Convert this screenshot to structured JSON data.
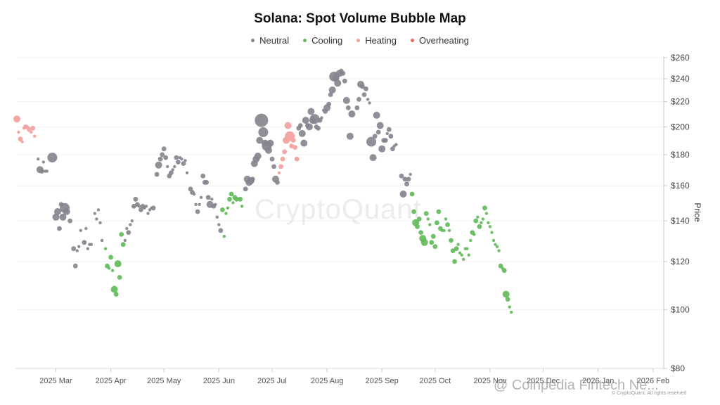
{
  "chart_data": {
    "type": "scatter",
    "title": "Solana: Spot Volume Bubble Map",
    "ylabel": "Price",
    "ylim": [
      80,
      260
    ],
    "y_ticks": [
      80,
      100,
      120,
      140,
      160,
      180,
      200,
      220,
      240,
      260
    ],
    "y_tick_labels": [
      "$80",
      "$100",
      "$120",
      "$140",
      "$160",
      "$180",
      "$200",
      "$220",
      "$240",
      "$260"
    ],
    "xlim": [
      "2025-02-07",
      "2026-02-07"
    ],
    "x_ticks": [
      {
        "date": "2025-03-01",
        "label": "2025 Mar"
      },
      {
        "date": "2025-04-01",
        "label": "2025 Apr"
      },
      {
        "date": "2025-05-01",
        "label": "2025 May"
      },
      {
        "date": "2025-06-01",
        "label": "2025 Jun"
      },
      {
        "date": "2025-07-01",
        "label": "2025 Jul"
      },
      {
        "date": "2025-08-01",
        "label": "2025 Aug"
      },
      {
        "date": "2025-09-01",
        "label": "2025 Sep"
      },
      {
        "date": "2025-10-01",
        "label": "2025 Oct"
      },
      {
        "date": "2025-11-01",
        "label": "2025 Nov"
      },
      {
        "date": "2025-12-01",
        "label": "2025 Dec"
      },
      {
        "date": "2026-01-01",
        "label": "2026 Jan"
      },
      {
        "date": "2026-02-01",
        "label": "2026 Feb"
      }
    ],
    "legend": [
      {
        "name": "Neutral",
        "color": "#86858f"
      },
      {
        "name": "Cooling",
        "color": "#62bb5a"
      },
      {
        "name": "Heating",
        "color": "#f3a3a0"
      },
      {
        "name": "Overheating",
        "color": "#e8675f"
      }
    ],
    "colors": {
      "N": "#86858f",
      "C": "#62bb5a",
      "H": "#f3a3a0",
      "O": "#e8675f"
    },
    "series_note": "points: [day offset from 2025-02-07, price USD, relative volume 1-5, state]",
    "points": [
      [
        0,
        206,
        3,
        "H"
      ],
      [
        1,
        196,
        1,
        "H"
      ],
      [
        2,
        191,
        2,
        "H"
      ],
      [
        3,
        189,
        1,
        "H"
      ],
      [
        4,
        199,
        1,
        "H"
      ],
      [
        5,
        200,
        2,
        "H"
      ],
      [
        6,
        200,
        1,
        "H"
      ],
      [
        7,
        198,
        2,
        "H"
      ],
      [
        8,
        196,
        1,
        "H"
      ],
      [
        9,
        199,
        2,
        "H"
      ],
      [
        10,
        193,
        1,
        "H"
      ],
      [
        12,
        177,
        1,
        "N"
      ],
      [
        13,
        170,
        3,
        "N"
      ],
      [
        14,
        169,
        2,
        "N"
      ],
      [
        15,
        175,
        1,
        "N"
      ],
      [
        16,
        169,
        1,
        "N"
      ],
      [
        17,
        169,
        1,
        "N"
      ],
      [
        20,
        178,
        4,
        "N"
      ],
      [
        22,
        142,
        3,
        "N"
      ],
      [
        23,
        145,
        3,
        "N"
      ],
      [
        24,
        136,
        2,
        "N"
      ],
      [
        25,
        149,
        2,
        "N"
      ],
      [
        26,
        142,
        3,
        "N"
      ],
      [
        27,
        147,
        4,
        "N"
      ],
      [
        28,
        145,
        3,
        "N"
      ],
      [
        30,
        140,
        2,
        "N"
      ],
      [
        32,
        126,
        2,
        "N"
      ],
      [
        33,
        118,
        2,
        "N"
      ],
      [
        34,
        125,
        1,
        "N"
      ],
      [
        35,
        127,
        1,
        "N"
      ],
      [
        36,
        135,
        1,
        "N"
      ],
      [
        38,
        129,
        2,
        "N"
      ],
      [
        39,
        136,
        1,
        "N"
      ],
      [
        40,
        126,
        1,
        "N"
      ],
      [
        41,
        128,
        1,
        "N"
      ],
      [
        42,
        128,
        1,
        "N"
      ],
      [
        44,
        144,
        1,
        "N"
      ],
      [
        45,
        141,
        1,
        "N"
      ],
      [
        46,
        146,
        1,
        "N"
      ],
      [
        47,
        139,
        1,
        "N"
      ],
      [
        48,
        130,
        1,
        "N"
      ],
      [
        50,
        126,
        1,
        "C"
      ],
      [
        51,
        118,
        2,
        "C"
      ],
      [
        52,
        117,
        1,
        "C"
      ],
      [
        53,
        122,
        2,
        "C"
      ],
      [
        54,
        116,
        1,
        "C"
      ],
      [
        55,
        108,
        3,
        "C"
      ],
      [
        56,
        106,
        2,
        "C"
      ],
      [
        57,
        119,
        3,
        "C"
      ],
      [
        58,
        113,
        2,
        "C"
      ],
      [
        59,
        133,
        2,
        "C"
      ],
      [
        60,
        128,
        2,
        "C"
      ],
      [
        61,
        130,
        1,
        "N"
      ],
      [
        62,
        136,
        1,
        "N"
      ],
      [
        63,
        134,
        2,
        "N"
      ],
      [
        64,
        138,
        1,
        "N"
      ],
      [
        65,
        140,
        1,
        "N"
      ],
      [
        66,
        148,
        2,
        "N"
      ],
      [
        67,
        152,
        2,
        "N"
      ],
      [
        68,
        149,
        2,
        "N"
      ],
      [
        69,
        148,
        1,
        "N"
      ],
      [
        70,
        146,
        2,
        "N"
      ],
      [
        71,
        148,
        2,
        "N"
      ],
      [
        72,
        147,
        1,
        "N"
      ],
      [
        73,
        148,
        1,
        "N"
      ],
      [
        74,
        144,
        1,
        "N"
      ],
      [
        75,
        146,
        1,
        "N"
      ],
      [
        76,
        147,
        1,
        "N"
      ],
      [
        77,
        147,
        2,
        "N"
      ],
      [
        79,
        167,
        2,
        "N"
      ],
      [
        80,
        173,
        3,
        "N"
      ],
      [
        81,
        177,
        2,
        "N"
      ],
      [
        82,
        180,
        2,
        "N"
      ],
      [
        83,
        184,
        2,
        "N"
      ],
      [
        84,
        178,
        2,
        "N"
      ],
      [
        85,
        172,
        1,
        "N"
      ],
      [
        86,
        166,
        2,
        "N"
      ],
      [
        87,
        168,
        2,
        "N"
      ],
      [
        88,
        170,
        1,
        "N"
      ],
      [
        89,
        172,
        1,
        "N"
      ],
      [
        90,
        178,
        2,
        "N"
      ],
      [
        91,
        175,
        2,
        "N"
      ],
      [
        92,
        178,
        1,
        "N"
      ],
      [
        93,
        177,
        1,
        "N"
      ],
      [
        94,
        174,
        2,
        "N"
      ],
      [
        95,
        176,
        1,
        "N"
      ],
      [
        96,
        168,
        1,
        "N"
      ],
      [
        98,
        158,
        2,
        "N"
      ],
      [
        99,
        156,
        2,
        "N"
      ],
      [
        100,
        155,
        1,
        "N"
      ],
      [
        101,
        149,
        1,
        "N"
      ],
      [
        102,
        145,
        2,
        "N"
      ],
      [
        103,
        149,
        1,
        "N"
      ],
      [
        104,
        153,
        1,
        "N"
      ],
      [
        105,
        166,
        2,
        "N"
      ],
      [
        106,
        162,
        2,
        "N"
      ],
      [
        107,
        162,
        2,
        "N"
      ],
      [
        108,
        153,
        2,
        "N"
      ],
      [
        109,
        149,
        3,
        "N"
      ],
      [
        110,
        152,
        1,
        "N"
      ],
      [
        111,
        148,
        2,
        "N"
      ],
      [
        112,
        149,
        1,
        "N"
      ],
      [
        113,
        142,
        1,
        "N"
      ],
      [
        114,
        138,
        1,
        "N"
      ],
      [
        115,
        135,
        2,
        "N"
      ],
      [
        116,
        146,
        2,
        "C"
      ],
      [
        117,
        132,
        1,
        "C"
      ],
      [
        118,
        144,
        1,
        "C"
      ],
      [
        119,
        147,
        1,
        "C"
      ],
      [
        120,
        152,
        2,
        "C"
      ],
      [
        121,
        155,
        2,
        "C"
      ],
      [
        122,
        150,
        1,
        "C"
      ],
      [
        123,
        153,
        2,
        "C"
      ],
      [
        124,
        152,
        2,
        "C"
      ],
      [
        126,
        152,
        2,
        "C"
      ],
      [
        127,
        148,
        1,
        "C"
      ],
      [
        129,
        158,
        2,
        "N"
      ],
      [
        130,
        164,
        3,
        "N"
      ],
      [
        131,
        162,
        3,
        "N"
      ],
      [
        132,
        163,
        3,
        "N"
      ],
      [
        133,
        164,
        2,
        "N"
      ],
      [
        134,
        174,
        3,
        "N"
      ],
      [
        135,
        177,
        3,
        "N"
      ],
      [
        136,
        179,
        3,
        "N"
      ],
      [
        137,
        190,
        3,
        "N"
      ],
      [
        138,
        205,
        5,
        "N"
      ],
      [
        139,
        196,
        4,
        "N"
      ],
      [
        140,
        188,
        3,
        "N"
      ],
      [
        141,
        186,
        4,
        "N"
      ],
      [
        142,
        183,
        3,
        "N"
      ],
      [
        143,
        188,
        3,
        "N"
      ],
      [
        144,
        177,
        2,
        "N"
      ],
      [
        145,
        172,
        2,
        "N"
      ],
      [
        146,
        164,
        3,
        "N"
      ],
      [
        147,
        162,
        2,
        "N"
      ],
      [
        148,
        168,
        1,
        "H"
      ],
      [
        149,
        172,
        2,
        "H"
      ],
      [
        150,
        177,
        2,
        "H"
      ],
      [
        151,
        182,
        2,
        "H"
      ],
      [
        152,
        190,
        3,
        "H"
      ],
      [
        153,
        201,
        3,
        "H"
      ],
      [
        154,
        193,
        4,
        "H"
      ],
      [
        155,
        186,
        2,
        "H"
      ],
      [
        156,
        190,
        2,
        "H"
      ],
      [
        157,
        185,
        2,
        "H"
      ],
      [
        158,
        177,
        2,
        "H"
      ],
      [
        159,
        199,
        2,
        "N"
      ],
      [
        160,
        201,
        2,
        "N"
      ],
      [
        161,
        195,
        3,
        "N"
      ],
      [
        162,
        188,
        3,
        "N"
      ],
      [
        163,
        205,
        3,
        "N"
      ],
      [
        164,
        201,
        2,
        "N"
      ],
      [
        165,
        200,
        3,
        "N"
      ],
      [
        166,
        212,
        3,
        "N"
      ],
      [
        167,
        205,
        3,
        "N"
      ],
      [
        168,
        206,
        4,
        "N"
      ],
      [
        169,
        200,
        2,
        "N"
      ],
      [
        170,
        199,
        2,
        "N"
      ],
      [
        171,
        205,
        2,
        "N"
      ],
      [
        172,
        207,
        1,
        "N"
      ],
      [
        173,
        213,
        1,
        "N"
      ],
      [
        174,
        212,
        2,
        "N"
      ],
      [
        175,
        215,
        3,
        "N"
      ],
      [
        176,
        218,
        2,
        "N"
      ],
      [
        177,
        226,
        2,
        "N"
      ],
      [
        178,
        230,
        3,
        "N"
      ],
      [
        179,
        242,
        4,
        "N"
      ],
      [
        180,
        241,
        3,
        "N"
      ],
      [
        181,
        236,
        3,
        "N"
      ],
      [
        182,
        245,
        3,
        "N"
      ],
      [
        183,
        247,
        2,
        "N"
      ],
      [
        184,
        245,
        2,
        "N"
      ],
      [
        185,
        238,
        2,
        "N"
      ],
      [
        186,
        221,
        3,
        "N"
      ],
      [
        187,
        215,
        2,
        "N"
      ],
      [
        188,
        193,
        3,
        "N"
      ],
      [
        189,
        210,
        3,
        "N"
      ],
      [
        192,
        215,
        2,
        "N"
      ],
      [
        193,
        222,
        2,
        "N"
      ],
      [
        194,
        235,
        3,
        "N"
      ],
      [
        195,
        233,
        2,
        "N"
      ],
      [
        196,
        226,
        2,
        "N"
      ],
      [
        197,
        231,
        2,
        "N"
      ],
      [
        198,
        222,
        1,
        "N"
      ],
      [
        199,
        219,
        1,
        "N"
      ],
      [
        200,
        189,
        4,
        "N"
      ],
      [
        201,
        178,
        3,
        "N"
      ],
      [
        202,
        193,
        2,
        "N"
      ],
      [
        203,
        209,
        3,
        "N"
      ],
      [
        204,
        196,
        2,
        "N"
      ],
      [
        205,
        201,
        3,
        "N"
      ],
      [
        206,
        184,
        3,
        "N"
      ],
      [
        207,
        190,
        2,
        "N"
      ],
      [
        208,
        190,
        2,
        "N"
      ],
      [
        209,
        195,
        1,
        "N"
      ],
      [
        210,
        198,
        2,
        "N"
      ],
      [
        211,
        193,
        2,
        "N"
      ],
      [
        212,
        184,
        2,
        "N"
      ],
      [
        213,
        186,
        1,
        "N"
      ],
      [
        214,
        187,
        1,
        "N"
      ],
      [
        217,
        166,
        2,
        "N"
      ],
      [
        218,
        155,
        3,
        "N"
      ],
      [
        219,
        164,
        2,
        "N"
      ],
      [
        220,
        161,
        2,
        "N"
      ],
      [
        221,
        164,
        2,
        "N"
      ],
      [
        222,
        167,
        1,
        "N"
      ],
      [
        223,
        155,
        2,
        "C"
      ],
      [
        224,
        145,
        2,
        "C"
      ],
      [
        225,
        139,
        3,
        "C"
      ],
      [
        226,
        137,
        2,
        "C"
      ],
      [
        227,
        141,
        2,
        "C"
      ],
      [
        228,
        134,
        2,
        "C"
      ],
      [
        229,
        131,
        3,
        "C"
      ],
      [
        230,
        129,
        3,
        "C"
      ],
      [
        231,
        144,
        2,
        "C"
      ],
      [
        232,
        141,
        1,
        "C"
      ],
      [
        233,
        138,
        1,
        "C"
      ],
      [
        234,
        129,
        2,
        "C"
      ],
      [
        235,
        132,
        2,
        "C"
      ],
      [
        236,
        127,
        2,
        "C"
      ],
      [
        237,
        139,
        2,
        "C"
      ],
      [
        238,
        145,
        2,
        "C"
      ],
      [
        239,
        136,
        2,
        "C"
      ],
      [
        240,
        135,
        1,
        "C"
      ],
      [
        241,
        135,
        1,
        "C"
      ],
      [
        242,
        141,
        1,
        "C"
      ],
      [
        243,
        138,
        2,
        "C"
      ],
      [
        244,
        135,
        1,
        "C"
      ],
      [
        245,
        130,
        2,
        "C"
      ],
      [
        246,
        125,
        2,
        "C"
      ],
      [
        247,
        120,
        2,
        "C"
      ],
      [
        248,
        126,
        2,
        "C"
      ],
      [
        249,
        128,
        1,
        "C"
      ],
      [
        250,
        124,
        1,
        "C"
      ],
      [
        251,
        123,
        1,
        "C"
      ],
      [
        252,
        121,
        1,
        "C"
      ],
      [
        253,
        126,
        1,
        "C"
      ],
      [
        254,
        126,
        1,
        "C"
      ],
      [
        255,
        123,
        1,
        "C"
      ],
      [
        256,
        130,
        1,
        "C"
      ],
      [
        257,
        134,
        2,
        "C"
      ],
      [
        258,
        133,
        1,
        "C"
      ],
      [
        259,
        140,
        2,
        "C"
      ],
      [
        260,
        142,
        1,
        "C"
      ],
      [
        261,
        137,
        2,
        "C"
      ],
      [
        262,
        139,
        1,
        "C"
      ],
      [
        263,
        141,
        1,
        "C"
      ],
      [
        264,
        147,
        2,
        "C"
      ],
      [
        265,
        144,
        1,
        "C"
      ],
      [
        266,
        139,
        1,
        "C"
      ],
      [
        267,
        137,
        1,
        "C"
      ],
      [
        268,
        134,
        1,
        "C"
      ],
      [
        269,
        130,
        1,
        "C"
      ],
      [
        270,
        128,
        1,
        "C"
      ],
      [
        271,
        127,
        1,
        "C"
      ],
      [
        272,
        125,
        1,
        "C"
      ],
      [
        273,
        118,
        2,
        "C"
      ],
      [
        274,
        117,
        1,
        "C"
      ],
      [
        275,
        116,
        2,
        "C"
      ],
      [
        276,
        106,
        3,
        "C"
      ],
      [
        277,
        104,
        2,
        "C"
      ],
      [
        278,
        101,
        1,
        "C"
      ],
      [
        279,
        99,
        1,
        "C"
      ]
    ]
  },
  "watermark": "CryptoQuant",
  "copyright": "© CryptoQuant. All rights reserved",
  "overlay_text": "@ Coinpedia Fintech Ne..."
}
